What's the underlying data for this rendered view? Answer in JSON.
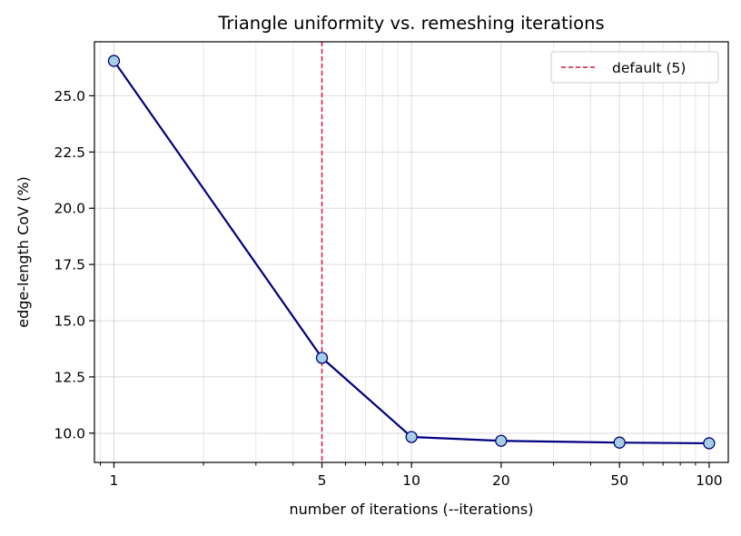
{
  "chart_data": {
    "type": "line",
    "title": "Triangle uniformity vs. remeshing iterations",
    "xlabel": "number of iterations (--iterations)",
    "ylabel": "edge-length CoV (%)",
    "xscale": "log",
    "xlim": [
      0.86,
      116
    ],
    "ylim": [
      8.7,
      27.4
    ],
    "grid": true,
    "legend_position": "top-right",
    "x_ticks": [
      1,
      5,
      10,
      20,
      50,
      100
    ],
    "x_tick_labels": [
      "1",
      "5",
      "10",
      "20",
      "50",
      "100"
    ],
    "y_ticks": [
      10.0,
      12.5,
      15.0,
      17.5,
      20.0,
      22.5,
      25.0
    ],
    "y_tick_labels": [
      "10.0",
      "12.5",
      "15.0",
      "17.5",
      "20.0",
      "22.5",
      "25.0"
    ],
    "series": [
      {
        "x": [
          1,
          5,
          10,
          20,
          50,
          100
        ],
        "y": [
          26.55,
          13.35,
          9.83,
          9.66,
          9.58,
          9.55
        ],
        "line_color": "#000080",
        "marker_face": "#a6cee3",
        "marker_edge": "#000080"
      }
    ],
    "annotations": [
      {
        "type": "vline",
        "x": 5,
        "label": "default (5)",
        "color": "#dc143c",
        "style": "dashed"
      }
    ]
  }
}
